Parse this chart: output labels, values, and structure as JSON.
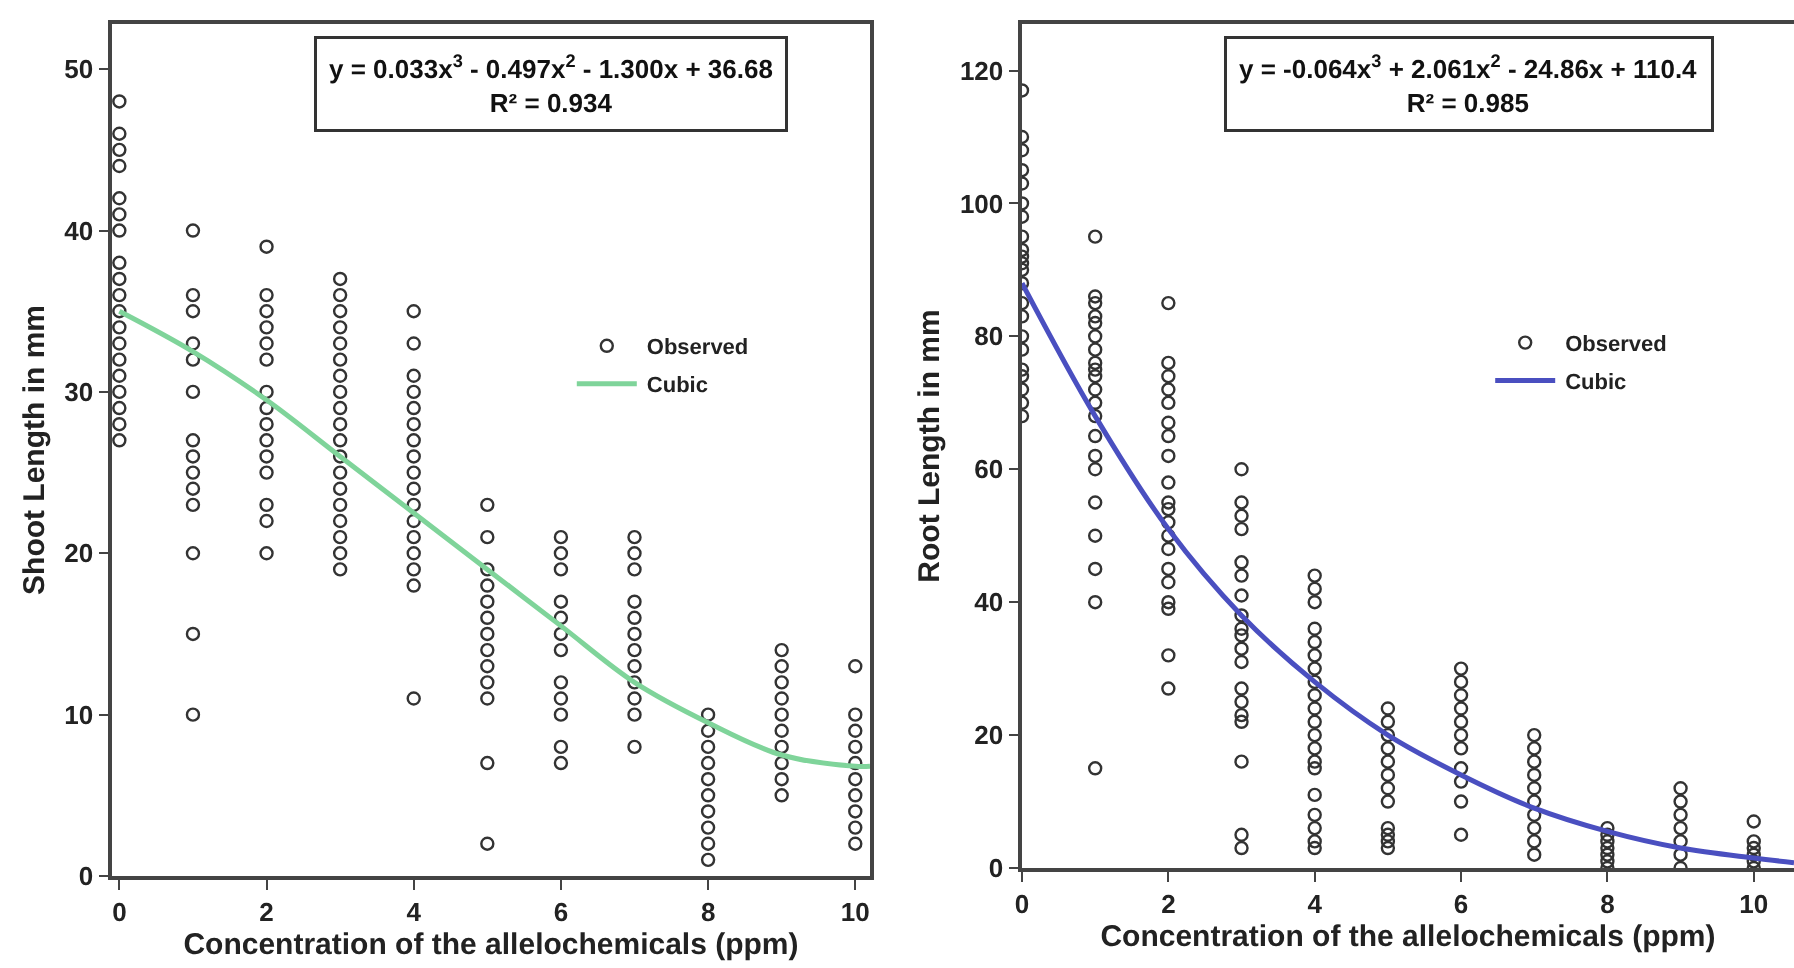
{
  "chart_data": [
    {
      "type": "scatter",
      "xlabel": "Concentration of the allelochemicals (ppm)",
      "ylabel": "Shoot Length in mm",
      "annotations": [
        "y = 0.033x$^{3}$ - 0.497x$^{2}$ - 1.300x + 36.68",
        "R² = 0.934"
      ],
      "xlim": [
        -0.1,
        10.2
      ],
      "ylim": [
        0,
        52.8
      ],
      "xticks": [
        0,
        2,
        4,
        6,
        8,
        10
      ],
      "yticks": [
        0,
        10,
        20,
        30,
        40,
        50
      ],
      "grid": false,
      "legend": "right",
      "line_style": "solid",
      "series": [
        {
          "name": "Observed",
          "marker": "circle",
          "color": "#333333",
          "x": [
            0,
            0,
            0,
            0,
            0,
            0,
            0,
            0,
            0,
            0,
            0,
            0,
            0,
            0,
            0,
            0,
            0,
            0,
            0,
            1,
            1,
            1,
            1,
            1,
            1,
            1,
            1,
            1,
            1,
            1,
            1,
            1,
            1,
            2,
            2,
            2,
            2,
            2,
            2,
            2,
            2,
            2,
            2,
            2,
            2,
            2,
            2,
            2,
            3,
            3,
            3,
            3,
            3,
            3,
            3,
            3,
            3,
            3,
            3,
            3,
            3,
            3,
            3,
            3,
            3,
            3,
            3,
            4,
            4,
            4,
            4,
            4,
            4,
            4,
            4,
            4,
            4,
            4,
            4,
            4,
            4,
            4,
            4,
            4,
            5,
            5,
            5,
            5,
            5,
            5,
            5,
            5,
            5,
            5,
            5,
            5,
            5,
            6,
            6,
            6,
            6,
            6,
            6,
            6,
            6,
            6,
            6,
            6,
            6,
            7,
            7,
            7,
            7,
            7,
            7,
            7,
            7,
            7,
            7,
            7,
            7,
            8,
            8,
            8,
            8,
            8,
            8,
            8,
            8,
            8,
            8,
            9,
            9,
            9,
            9,
            9,
            9,
            9,
            9,
            9,
            9,
            10,
            10,
            10,
            10,
            10,
            10,
            10,
            10,
            10,
            10
          ],
          "values": [
            27,
            28,
            29,
            30,
            31,
            32,
            33,
            34,
            35,
            36,
            37,
            38,
            40,
            41,
            42,
            44,
            45,
            46,
            48,
            40,
            36,
            35,
            33,
            32,
            30,
            27,
            26,
            25,
            24,
            23,
            20,
            15,
            10,
            39,
            36,
            35,
            34,
            33,
            32,
            30,
            29,
            28,
            27,
            26,
            25,
            23,
            22,
            20,
            37,
            36,
            35,
            34,
            33,
            32,
            31,
            30,
            29,
            28,
            27,
            26,
            25,
            24,
            23,
            22,
            21,
            20,
            19,
            35,
            33,
            31,
            30,
            29,
            28,
            27,
            26,
            25,
            24,
            23,
            22,
            21,
            20,
            19,
            18,
            11,
            23,
            21,
            19,
            18,
            17,
            16,
            15,
            14,
            13,
            12,
            11,
            7,
            2,
            21,
            20,
            19,
            17,
            16,
            15,
            14,
            12,
            11,
            10,
            8,
            7,
            21,
            20,
            19,
            17,
            16,
            15,
            14,
            13,
            12,
            11,
            10,
            8,
            10,
            9,
            8,
            7,
            6,
            5,
            4,
            3,
            2,
            1,
            14,
            13,
            12,
            11,
            10,
            9,
            8,
            7,
            6,
            5,
            13,
            10,
            9,
            8,
            7,
            6,
            5,
            4,
            3,
            2
          ]
        },
        {
          "name": "Cubic",
          "type": "line",
          "marker": "none",
          "color": "#7fd49a",
          "x": [
            0,
            1,
            2,
            3,
            4,
            5,
            6,
            7,
            8,
            9,
            10,
            10.2
          ],
          "values": [
            35,
            32.5,
            29.5,
            26,
            22.5,
            19,
            15.5,
            12,
            9.5,
            7.5,
            6.8,
            6.8
          ]
        }
      ]
    },
    {
      "type": "scatter",
      "xlabel": "Concentration of the allelochemicals (ppm)",
      "ylabel": "Root Length in mm",
      "annotations": [
        "y = -0.064x$^{3}$ + 2.061x$^{2}$ - 24.86x + 110.4",
        "R² = 0.985"
      ],
      "xlim": [
        0,
        10.55
      ],
      "ylim": [
        0,
        127
      ],
      "xticks": [
        0,
        2,
        4,
        6,
        8,
        10
      ],
      "yticks": [
        0,
        20,
        40,
        60,
        80,
        100,
        120
      ],
      "grid": false,
      "legend": "right",
      "line_style": "solid",
      "series": [
        {
          "name": "Observed",
          "marker": "circle",
          "color": "#333333",
          "x": [
            0,
            0,
            0,
            0,
            0,
            0,
            0,
            0,
            0,
            0,
            0,
            0,
            0,
            0,
            0,
            0,
            0,
            0,
            0,
            0,
            0,
            0,
            1,
            1,
            1,
            1,
            1,
            1,
            1,
            1,
            1,
            1,
            1,
            1,
            1,
            1,
            1,
            1,
            1,
            1,
            1,
            1,
            1,
            2,
            2,
            2,
            2,
            2,
            2,
            2,
            2,
            2,
            2,
            2,
            2,
            2,
            2,
            2,
            2,
            2,
            2,
            2,
            2,
            3,
            3,
            3,
            3,
            3,
            3,
            3,
            3,
            3,
            3,
            3,
            3,
            3,
            3,
            3,
            3,
            3,
            3,
            3,
            4,
            4,
            4,
            4,
            4,
            4,
            4,
            4,
            4,
            4,
            4,
            4,
            4,
            4,
            4,
            4,
            4,
            4,
            4,
            4,
            5,
            5,
            5,
            5,
            5,
            5,
            5,
            5,
            5,
            5,
            5,
            5,
            6,
            6,
            6,
            6,
            6,
            6,
            6,
            6,
            6,
            6,
            6,
            7,
            7,
            7,
            7,
            7,
            7,
            7,
            7,
            7,
            7,
            8,
            8,
            8,
            8,
            8,
            8,
            8,
            9,
            9,
            9,
            9,
            9,
            9,
            9,
            10,
            10,
            10,
            10,
            10,
            10
          ],
          "values": [
            68,
            70,
            72,
            74,
            75,
            78,
            80,
            83,
            85,
            88,
            90,
            91,
            92,
            93,
            95,
            98,
            100,
            103,
            105,
            108,
            110,
            117,
            95,
            86,
            85,
            83,
            82,
            80,
            78,
            76,
            75,
            74,
            72,
            70,
            68,
            65,
            62,
            60,
            55,
            50,
            45,
            40,
            15,
            85,
            76,
            74,
            72,
            70,
            67,
            65,
            62,
            58,
            55,
            54,
            52,
            50,
            48,
            45,
            43,
            40,
            39,
            32,
            27,
            60,
            55,
            53,
            51,
            46,
            44,
            41,
            38,
            36,
            35,
            33,
            31,
            27,
            25,
            23,
            22,
            16,
            5,
            3,
            44,
            42,
            40,
            36,
            34,
            32,
            30,
            28,
            26,
            24,
            22,
            20,
            18,
            16,
            15,
            11,
            8,
            6,
            4,
            3,
            24,
            22,
            20,
            18,
            16,
            14,
            12,
            10,
            6,
            5,
            4,
            3,
            30,
            28,
            26,
            24,
            22,
            20,
            18,
            15,
            13,
            10,
            5,
            20,
            18,
            16,
            14,
            12,
            10,
            8,
            6,
            4,
            2,
            6,
            5,
            4,
            3,
            2,
            1,
            0,
            12,
            10,
            8,
            6,
            4,
            2,
            0,
            7,
            4,
            3,
            2,
            1,
            0
          ]
        },
        {
          "name": "Cubic",
          "type": "line",
          "marker": "none",
          "color": "#4a4fc0",
          "x": [
            0,
            1,
            2,
            3,
            4,
            5,
            6,
            7,
            8,
            9,
            10,
            10.55
          ],
          "values": [
            88,
            68,
            51,
            38,
            28,
            20,
            14,
            9,
            5.5,
            3,
            1.5,
            0.8
          ]
        }
      ]
    }
  ]
}
